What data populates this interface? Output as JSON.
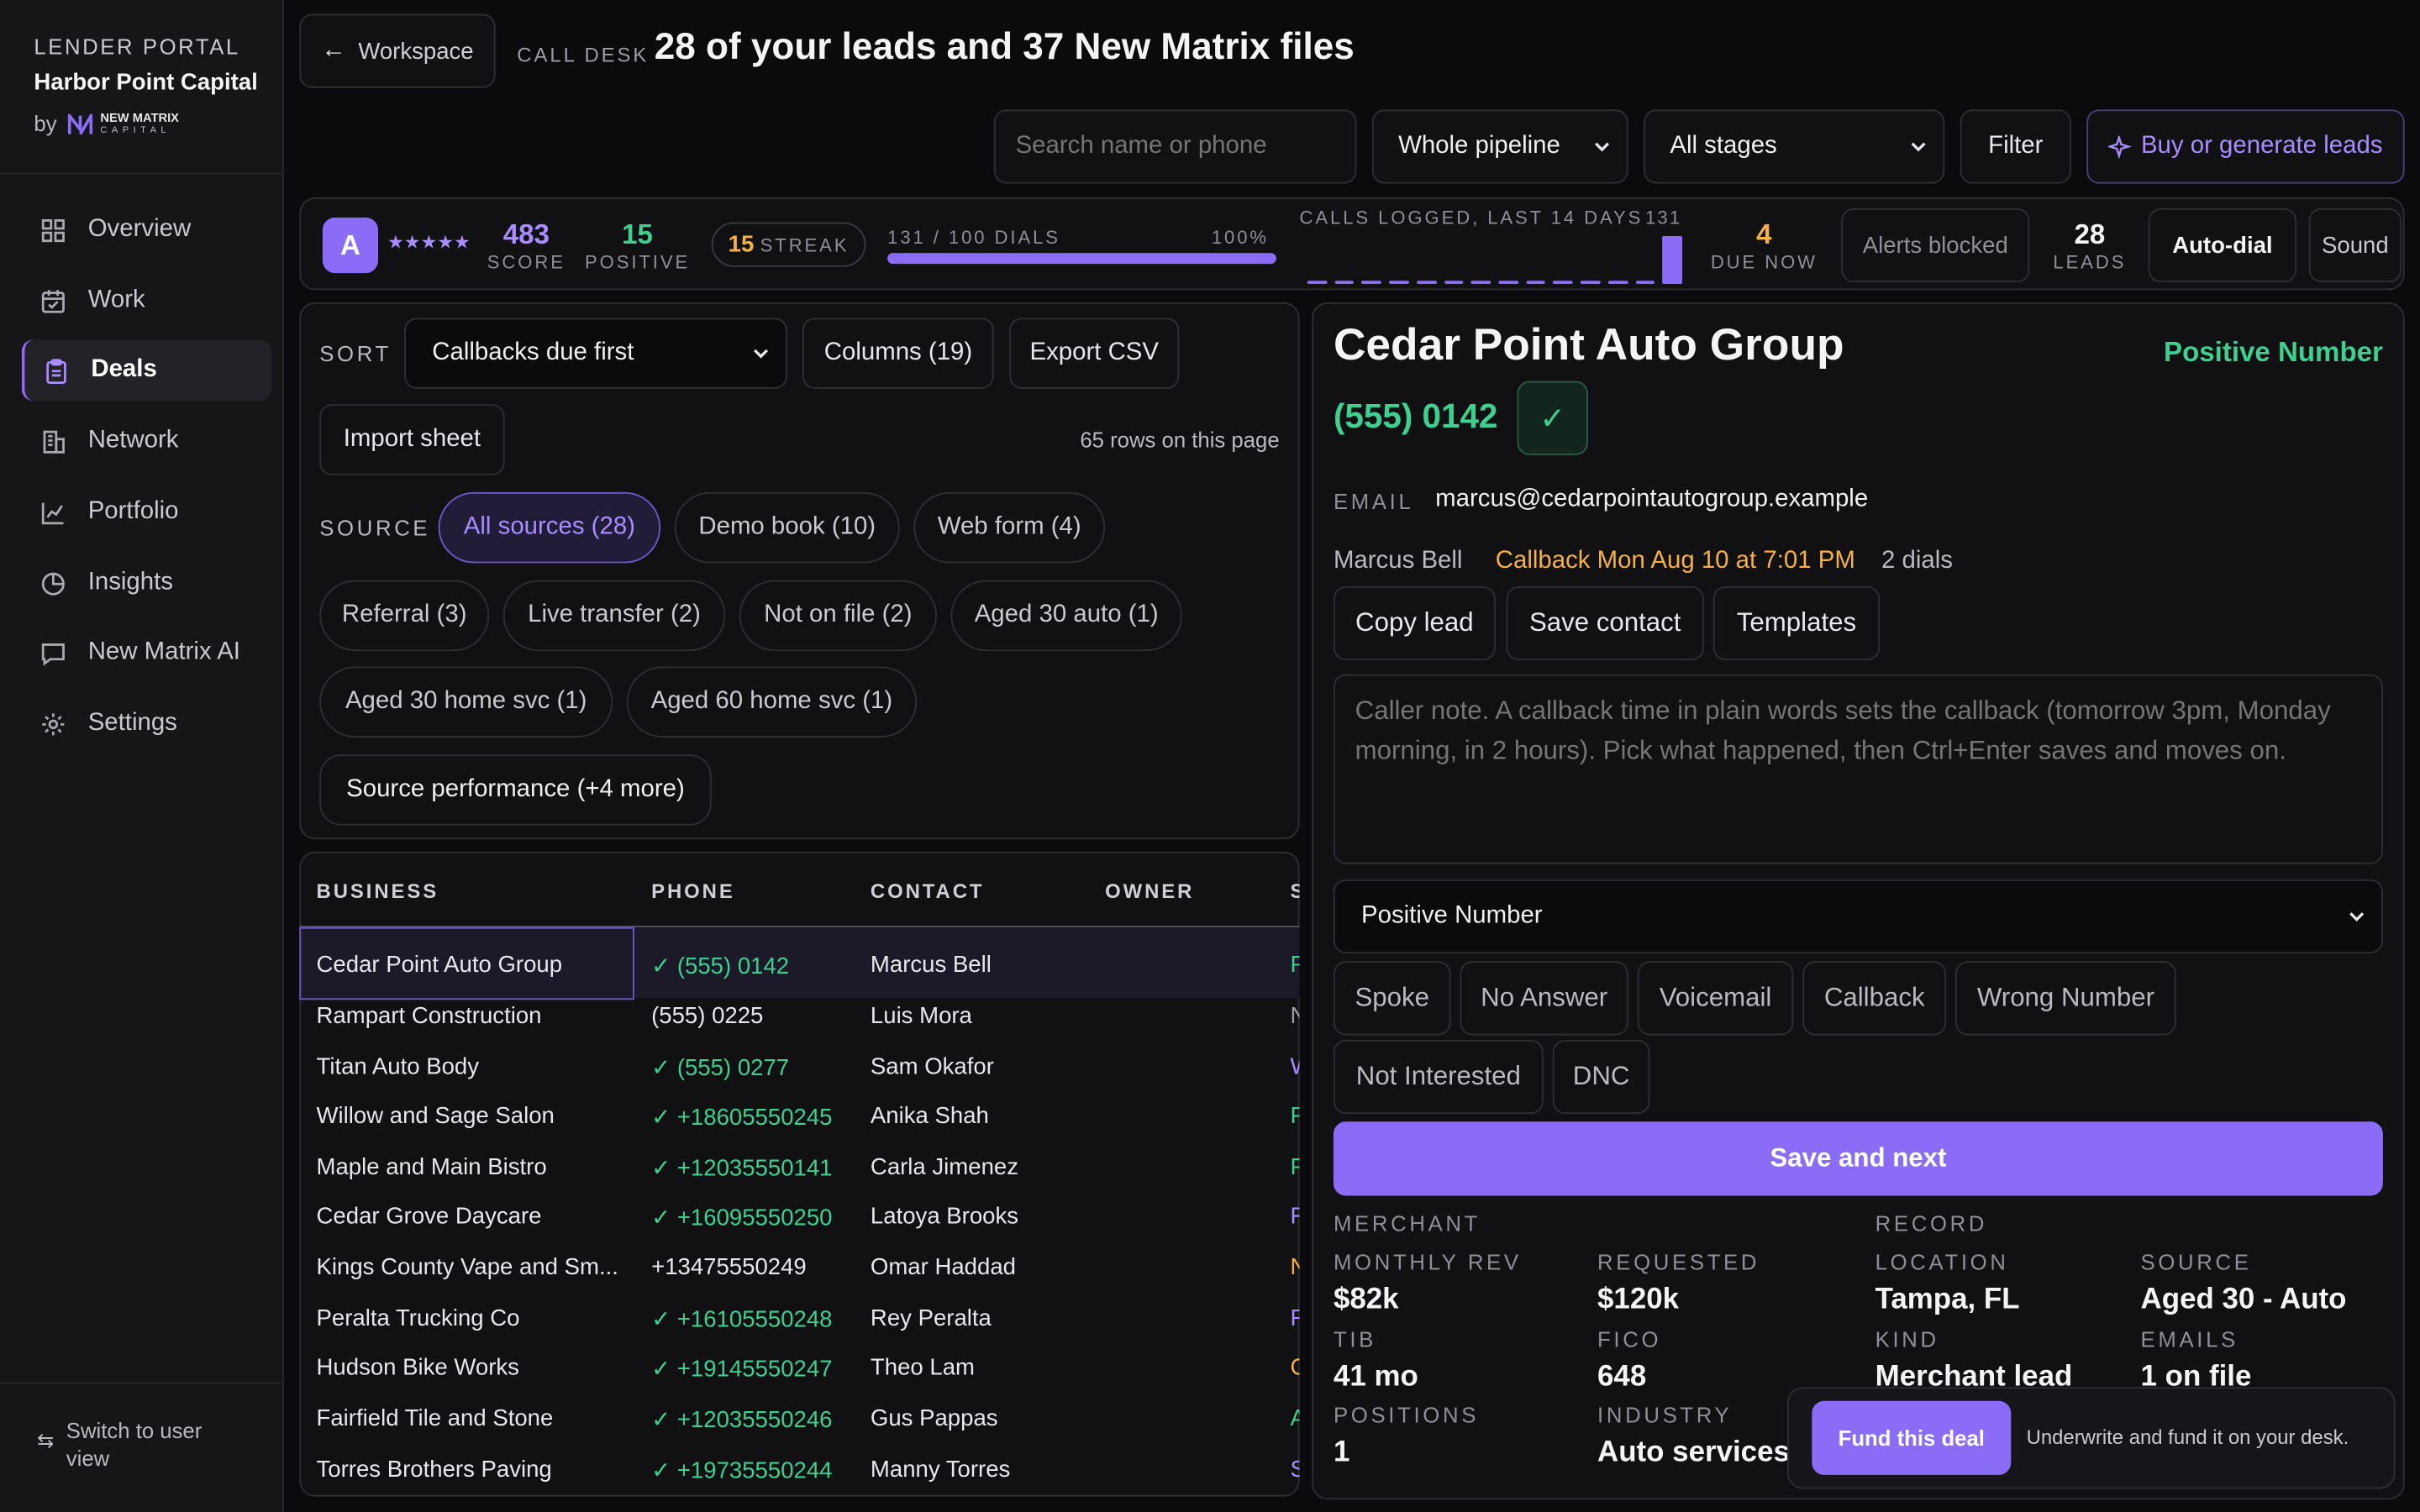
{
  "sidebar": {
    "tag": "LENDER PORTAL",
    "org": "Harbor Point Capital",
    "by": "by",
    "logo_line1": "NEW MATRIX",
    "logo_line2": "CAPITAL",
    "items": [
      {
        "label": "Overview",
        "icon": "grid-icon"
      },
      {
        "label": "Work",
        "icon": "calendar-check-icon"
      },
      {
        "label": "Deals",
        "icon": "clipboard-icon",
        "active": true
      },
      {
        "label": "Network",
        "icon": "building-icon"
      },
      {
        "label": "Portfolio",
        "icon": "line-chart-icon"
      },
      {
        "label": "Insights",
        "icon": "pie-chart-icon"
      },
      {
        "label": "New Matrix AI",
        "icon": "chat-icon"
      },
      {
        "label": "Settings",
        "icon": "gear-icon"
      }
    ],
    "switch_label": "Switch to user view"
  },
  "header": {
    "back_label": "Workspace",
    "section": "CALL DESK",
    "title": "28 of your leads and 37 New Matrix files",
    "search_placeholder": "Search name or phone",
    "pipeline_select": "Whole pipeline",
    "stage_select": "All stages",
    "filter_label": "Filter",
    "buy_label": "Buy or generate leads"
  },
  "stats": {
    "avatar": "A",
    "stars": "★★★★★",
    "score": "483",
    "score_label": "SCORE",
    "positive": "15",
    "positive_label": "POSITIVE",
    "streak": "15",
    "streak_label": "STREAK",
    "dials_text": "131 / 100 DIALS",
    "dials_pct": "100%",
    "dials_fraction": 1.0,
    "calls_label": "CALLS LOGGED, LAST 14 DAYS",
    "calls_total": "131",
    "calls_by_day": [
      0,
      0,
      0,
      0,
      0,
      0,
      0,
      0,
      0,
      0,
      0,
      0,
      0,
      131
    ],
    "due": "4",
    "due_label": "DUE NOW",
    "alerts_label": "Alerts blocked",
    "leads": "28",
    "leads_label": "LEADS",
    "autodial_label": "Auto-dial",
    "sound_label": "Sound"
  },
  "filters": {
    "sort_label": "SORT",
    "sort_value": "Callbacks due first",
    "columns_label": "Columns (19)",
    "export_label": "Export CSV",
    "import_label": "Import sheet",
    "rows_note": "65 rows on this page",
    "source_label": "SOURCE",
    "sources": [
      "All sources (28)",
      "Demo book (10)",
      "Web form (4)",
      "Referral (3)",
      "Live transfer (2)",
      "Not on file (2)",
      "Aged 30 auto (1)",
      "Aged 30 home svc (1)",
      "Aged 60 home svc (1)",
      "Source performance (+4 more)"
    ]
  },
  "table": {
    "headers": [
      "BUSINESS",
      "PHONE",
      "CONTACT",
      "OWNER",
      "S"
    ],
    "rows": [
      {
        "business": "Cedar Point Auto Group",
        "phone": "✓ (555) 0142",
        "verified": true,
        "contact": "Marcus Bell",
        "owner": "",
        "stage": "P"
      },
      {
        "business": "Rampart Construction",
        "phone": "(555) 0225",
        "verified": false,
        "contact": "Luis Mora",
        "owner": "",
        "stage": "N"
      },
      {
        "business": "Titan Auto Body",
        "phone": "✓ (555) 0277",
        "verified": true,
        "contact": "Sam Okafor",
        "owner": "",
        "stage": "W"
      },
      {
        "business": "Willow and Sage Salon",
        "phone": "✓ +18605550245",
        "verified": true,
        "contact": "Anika Shah",
        "owner": "",
        "stage": "P"
      },
      {
        "business": "Maple and Main Bistro",
        "phone": "✓ +12035550141",
        "verified": true,
        "contact": "Carla Jimenez",
        "owner": "",
        "stage": "P"
      },
      {
        "business": "Cedar Grove Daycare",
        "phone": "✓ +16095550250",
        "verified": true,
        "contact": "Latoya Brooks",
        "owner": "",
        "stage": "R"
      },
      {
        "business": "Kings County Vape and Sm...",
        "phone": "+13475550249",
        "verified": false,
        "contact": "Omar Haddad",
        "owner": "",
        "stage": "N"
      },
      {
        "business": "Peralta Trucking Co",
        "phone": "✓ +16105550248",
        "verified": true,
        "contact": "Rey Peralta",
        "owner": "",
        "stage": "F"
      },
      {
        "business": "Hudson Bike Works",
        "phone": "✓ +19145550247",
        "verified": true,
        "contact": "Theo Lam",
        "owner": "",
        "stage": "C"
      },
      {
        "business": "Fairfield Tile and Stone",
        "phone": "✓ +12035550246",
        "verified": true,
        "contact": "Gus Pappas",
        "owner": "",
        "stage": "A"
      },
      {
        "business": "Torres Brothers Paving",
        "phone": "✓ +19735550244",
        "verified": true,
        "contact": "Manny Torres",
        "owner": "",
        "stage": "S"
      }
    ]
  },
  "detail": {
    "business": "Cedar Point Auto Group",
    "status": "Positive Number",
    "phone": "(555) 0142",
    "check": "✓",
    "email_label": "EMAIL",
    "email": "marcus@cedarpointautogroup.example",
    "contact": "Marcus Bell",
    "callback": "Callback Mon Aug 10 at 7:01 PM",
    "dials": "2 dials",
    "copy_label": "Copy lead",
    "save_contact_label": "Save contact",
    "templates_label": "Templates",
    "note_placeholder": "Caller note. A callback time in plain words sets the callback (tomorrow 3pm, Monday morning, in 2 hours). Pick what happened, then Ctrl+Enter saves and moves on.",
    "outcome_select": "Positive Number",
    "outcomes": [
      "Spoke",
      "No Answer",
      "Voicemail",
      "Callback",
      "Wrong Number",
      "Not Interested",
      "DNC"
    ],
    "save_next_label": "Save and next",
    "merchant_label": "MERCHANT",
    "record_label": "RECORD",
    "fields": [
      {
        "k": "MONTHLY REV",
        "v": "$82k"
      },
      {
        "k": "REQUESTED",
        "v": "$120k"
      },
      {
        "k": "LOCATION",
        "v": "Tampa, FL"
      },
      {
        "k": "SOURCE",
        "v": "Aged 30 - Auto"
      },
      {
        "k": "TIB",
        "v": "41 mo"
      },
      {
        "k": "FICO",
        "v": "648"
      },
      {
        "k": "KIND",
        "v": "Merchant lead"
      },
      {
        "k": "EMAILS",
        "v": "1 on file"
      },
      {
        "k": "POSITIONS",
        "v": "1"
      },
      {
        "k": "INDUSTRY",
        "v": "Auto services"
      }
    ],
    "fund_label": "Fund this deal",
    "fund_note": "Underwrite and fund it on your desk."
  },
  "colors": {
    "accent": "#8b6cf7",
    "positive": "#3fcf8e",
    "warning": "#f5b04a"
  }
}
